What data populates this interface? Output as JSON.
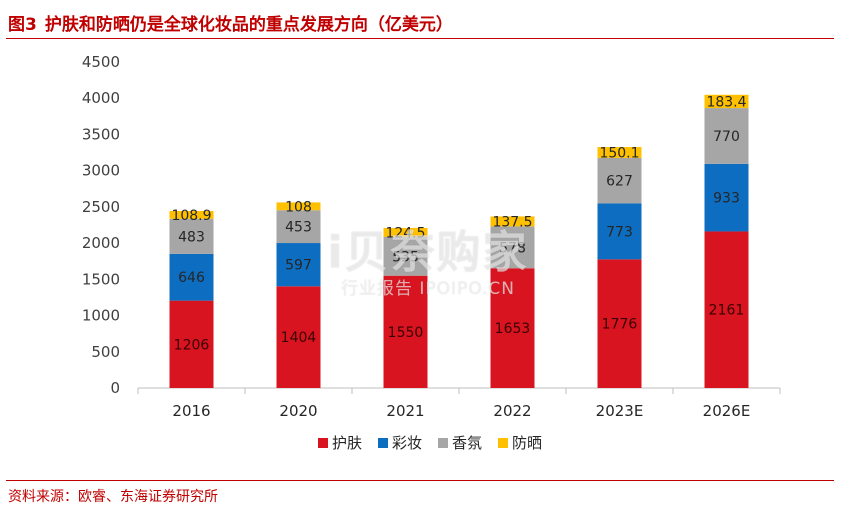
{
  "header": {
    "figure_number": "图3",
    "title": "护肤和防晒仍是全球化妆品的重点发展方向（亿美元）"
  },
  "chart_data": {
    "type": "bar",
    "stacked": true,
    "categories": [
      "2016",
      "2020",
      "2021",
      "2022",
      "2023E",
      "2026E"
    ],
    "series": [
      {
        "name": "护肤",
        "color": "#d7141f",
        "values": [
          1206,
          1404,
          1550,
          1653,
          1776,
          2161
        ],
        "labels": [
          "1206",
          "1404",
          "1550",
          "1653",
          "1776",
          "2161"
        ]
      },
      {
        "name": "彩妆",
        "color": "#0d6dc0",
        "values": [
          646,
          597,
          0,
          0,
          773,
          933
        ],
        "labels": [
          "646",
          "597",
          "",
          "",
          "773",
          "933"
        ]
      },
      {
        "name": "香氛",
        "color": "#a6a6a6",
        "values": [
          483,
          453,
          535,
          578,
          627,
          770
        ],
        "labels": [
          "483",
          "453",
          "535",
          "578",
          "627",
          "770"
        ]
      },
      {
        "name": "防晒",
        "color": "#ffc000",
        "values": [
          108.9,
          108,
          124.5,
          137.5,
          150.1,
          183.4
        ],
        "labels": [
          "108.9",
          "108",
          "124.5",
          "137.5",
          "150.1",
          "183.4"
        ]
      }
    ],
    "ylim": [
      0,
      4500
    ],
    "yticks": [
      "0",
      "500",
      "1000",
      "1500",
      "2000",
      "2500",
      "3000",
      "3500",
      "4000",
      "4500"
    ],
    "legend_position": "bottom",
    "grid": false
  },
  "watermark": {
    "main": "i贝奈购家",
    "sub": "行业报告 IPOIPO.CN"
  },
  "footer": {
    "source": "资料来源：欧睿、东海证券研究所"
  }
}
